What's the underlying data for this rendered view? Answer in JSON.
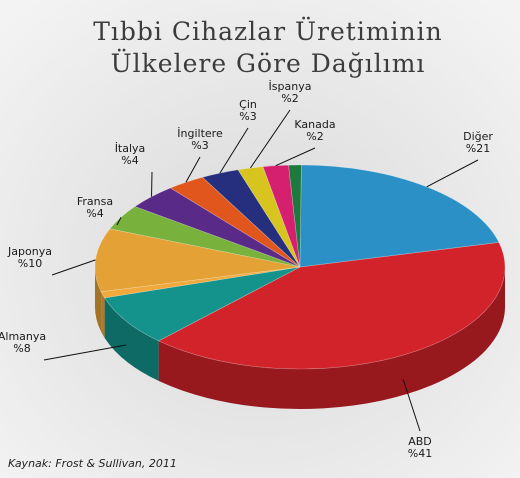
{
  "chart_data": {
    "type": "pie3d",
    "title": [
      "Tıbbi Cihazlar Üretiminin",
      "Ülkelere Göre Dağılımı"
    ],
    "source": "Kaynak: Frost & Sullivan, 2011",
    "categories": [
      "ABD",
      "Almanya",
      null,
      "Japonya",
      "Fransa",
      "İtalya",
      "İngiltere",
      "Çin",
      "İspanya",
      "Kanada",
      null,
      "Diğer"
    ],
    "values": [
      41,
      8,
      1,
      10,
      4,
      4,
      3,
      3,
      2,
      2,
      1,
      21
    ],
    "value_labels": [
      "%41",
      "%8",
      null,
      "%10",
      "%4",
      "%4",
      "%3",
      "%3",
      "%2",
      "%2",
      null,
      "%21"
    ],
    "colors": [
      "#d2232a",
      "#13938c",
      "#f2a93b",
      "#e3a136",
      "#78b13c",
      "#5a2a88",
      "#e0561d",
      "#262f7d",
      "#d8c41f",
      "#d5206f",
      "#1e7a3c",
      "#2b90c6"
    ]
  }
}
